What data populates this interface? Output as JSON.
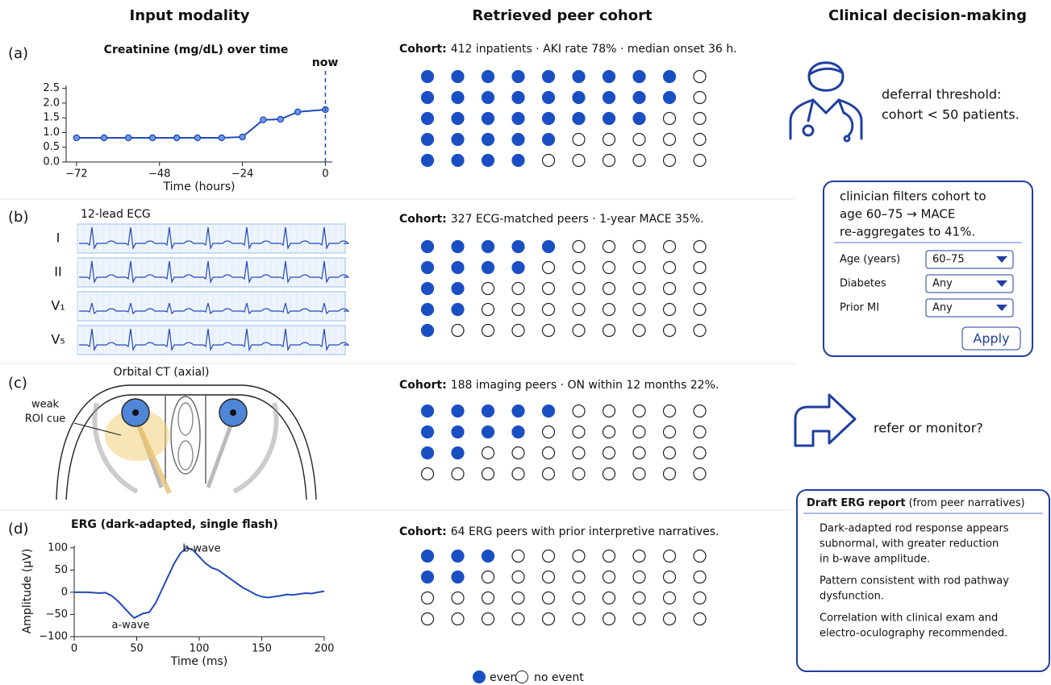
{
  "columns": {
    "input": "Input modality",
    "cohort": "Retrieved peer cohort",
    "decision": "Clinical decision-making"
  },
  "panels": [
    {
      "label": "(a)",
      "chart": {
        "type": "line",
        "title": "Creatinine (mg/dL) over time",
        "xlabel": "Time (hours)",
        "color": "#2349b8",
        "markers": true,
        "x": [
          -72,
          -64,
          -57,
          -50,
          -43,
          -37,
          -30,
          -24,
          -18,
          -13,
          -8,
          0
        ],
        "values": [
          0.82,
          0.82,
          0.82,
          0.82,
          0.82,
          0.82,
          0.82,
          0.85,
          1.43,
          1.45,
          1.7,
          1.78
        ],
        "xlim": [
          -75,
          2
        ],
        "ylim": [
          0,
          2.6
        ],
        "xticks": [
          {
            "value": -72,
            "label": "−72"
          },
          {
            "value": -48,
            "label": "−48"
          },
          {
            "value": -24,
            "label": "−24"
          },
          0
        ],
        "yticks": [
          {
            "value": 0,
            "label": "0.0"
          },
          {
            "value": 0.5,
            "label": "0.5"
          },
          {
            "value": 1,
            "label": "1.0"
          },
          {
            "value": 1.5,
            "label": "1.5"
          },
          {
            "value": 2,
            "label": "2.0"
          },
          {
            "value": 2.5,
            "label": "2.5"
          }
        ],
        "annotations": [
          "now"
        ]
      },
      "cohort": {
        "prefix": "Cohort:",
        "text": "412 inpatients · AKI rate 78% · median onset 36 h.",
        "per_row": 10,
        "filled_per_row": [
          9,
          9,
          8,
          5,
          4
        ]
      }
    },
    {
      "label": "(b)",
      "ecg": {
        "title": "12-lead ECG",
        "leads": [
          "I",
          "II",
          "V₁",
          "V₅"
        ]
      },
      "cohort": {
        "prefix": "Cohort:",
        "text": "327 ECG-matched peers · 1-year MACE 35%.",
        "per_row": 10,
        "filled_per_row": [
          5,
          4,
          2,
          2,
          1
        ]
      }
    },
    {
      "label": "(c)",
      "ct": {
        "title": "Orbital CT (axial)",
        "annotation": [
          "weak",
          "ROI cue"
        ]
      },
      "cohort": {
        "prefix": "Cohort:",
        "text": "188 imaging peers · ON within 12 months 22%.",
        "per_row": 10,
        "filled_per_row": [
          5,
          4,
          2,
          0
        ]
      }
    },
    {
      "label": "(d)",
      "chart": {
        "type": "line",
        "title": "ERG (dark-adapted, single flash)",
        "xlabel": "Time (ms)",
        "ylabel": "Amplitude (μV)",
        "color": "#2349b8",
        "markers": false,
        "x": [
          0,
          5,
          10,
          15,
          20,
          25,
          30,
          35,
          40,
          45,
          48,
          50,
          55,
          60,
          65,
          70,
          75,
          80,
          85,
          90,
          95,
          100,
          105,
          110,
          115,
          120,
          125,
          130,
          135,
          140,
          145,
          150,
          155,
          160,
          165,
          170,
          175,
          180,
          185,
          190,
          195,
          200
        ],
        "values": [
          0,
          0,
          0,
          -1,
          -2,
          -1,
          -8,
          -20,
          -35,
          -50,
          -58,
          -55,
          -48,
          -45,
          -25,
          5,
          35,
          65,
          88,
          100,
          95,
          80,
          65,
          55,
          50,
          40,
          30,
          20,
          10,
          3,
          -5,
          -10,
          -12,
          -10,
          -8,
          -5,
          -6,
          -4,
          -2,
          -3,
          0,
          2
        ],
        "xlim": [
          0,
          200
        ],
        "ylim": [
          -100,
          105
        ],
        "xticks": [
          0,
          50,
          100,
          150,
          200
        ],
        "yticks": [
          100,
          50,
          0,
          {
            "value": -50,
            "label": "−50"
          },
          {
            "value": -100,
            "label": "−100"
          }
        ],
        "annotations": [
          "a-wave",
          "b-wave"
        ]
      },
      "cohort": {
        "prefix": "Cohort:",
        "text": "64 ERG peers with prior interpretive narratives.",
        "per_row": 10,
        "filled_per_row": [
          3,
          2,
          0,
          0
        ]
      }
    }
  ],
  "decision": {
    "deferral": [
      "deferral threshold:",
      "cohort < 50 patients."
    ],
    "filter": {
      "text": [
        "clinician filters cohort to",
        "age 60–75 → MACE",
        "re-aggregates to 41%."
      ],
      "fields": [
        {
          "label": "Age (years)",
          "value": "60–75"
        },
        {
          "label": "Diabetes",
          "value": "Any"
        },
        {
          "label": "Prior MI",
          "value": "Any"
        }
      ],
      "button": "Apply"
    },
    "refer": "refer or monitor?",
    "report": {
      "title": "Draft ERG report",
      "subtitle": "(from peer narratives)",
      "paragraphs": [
        [
          "Dark-adapted rod response appears",
          "subnormal, with greater reduction",
          "in b-wave amplitude."
        ],
        [
          "Pattern consistent with rod pathway",
          "dysfunction."
        ],
        [
          "Correlation with clinical exam and",
          "electro-oculography recommended."
        ]
      ]
    }
  },
  "legend": {
    "event": "event,",
    "no_event": "no event"
  }
}
